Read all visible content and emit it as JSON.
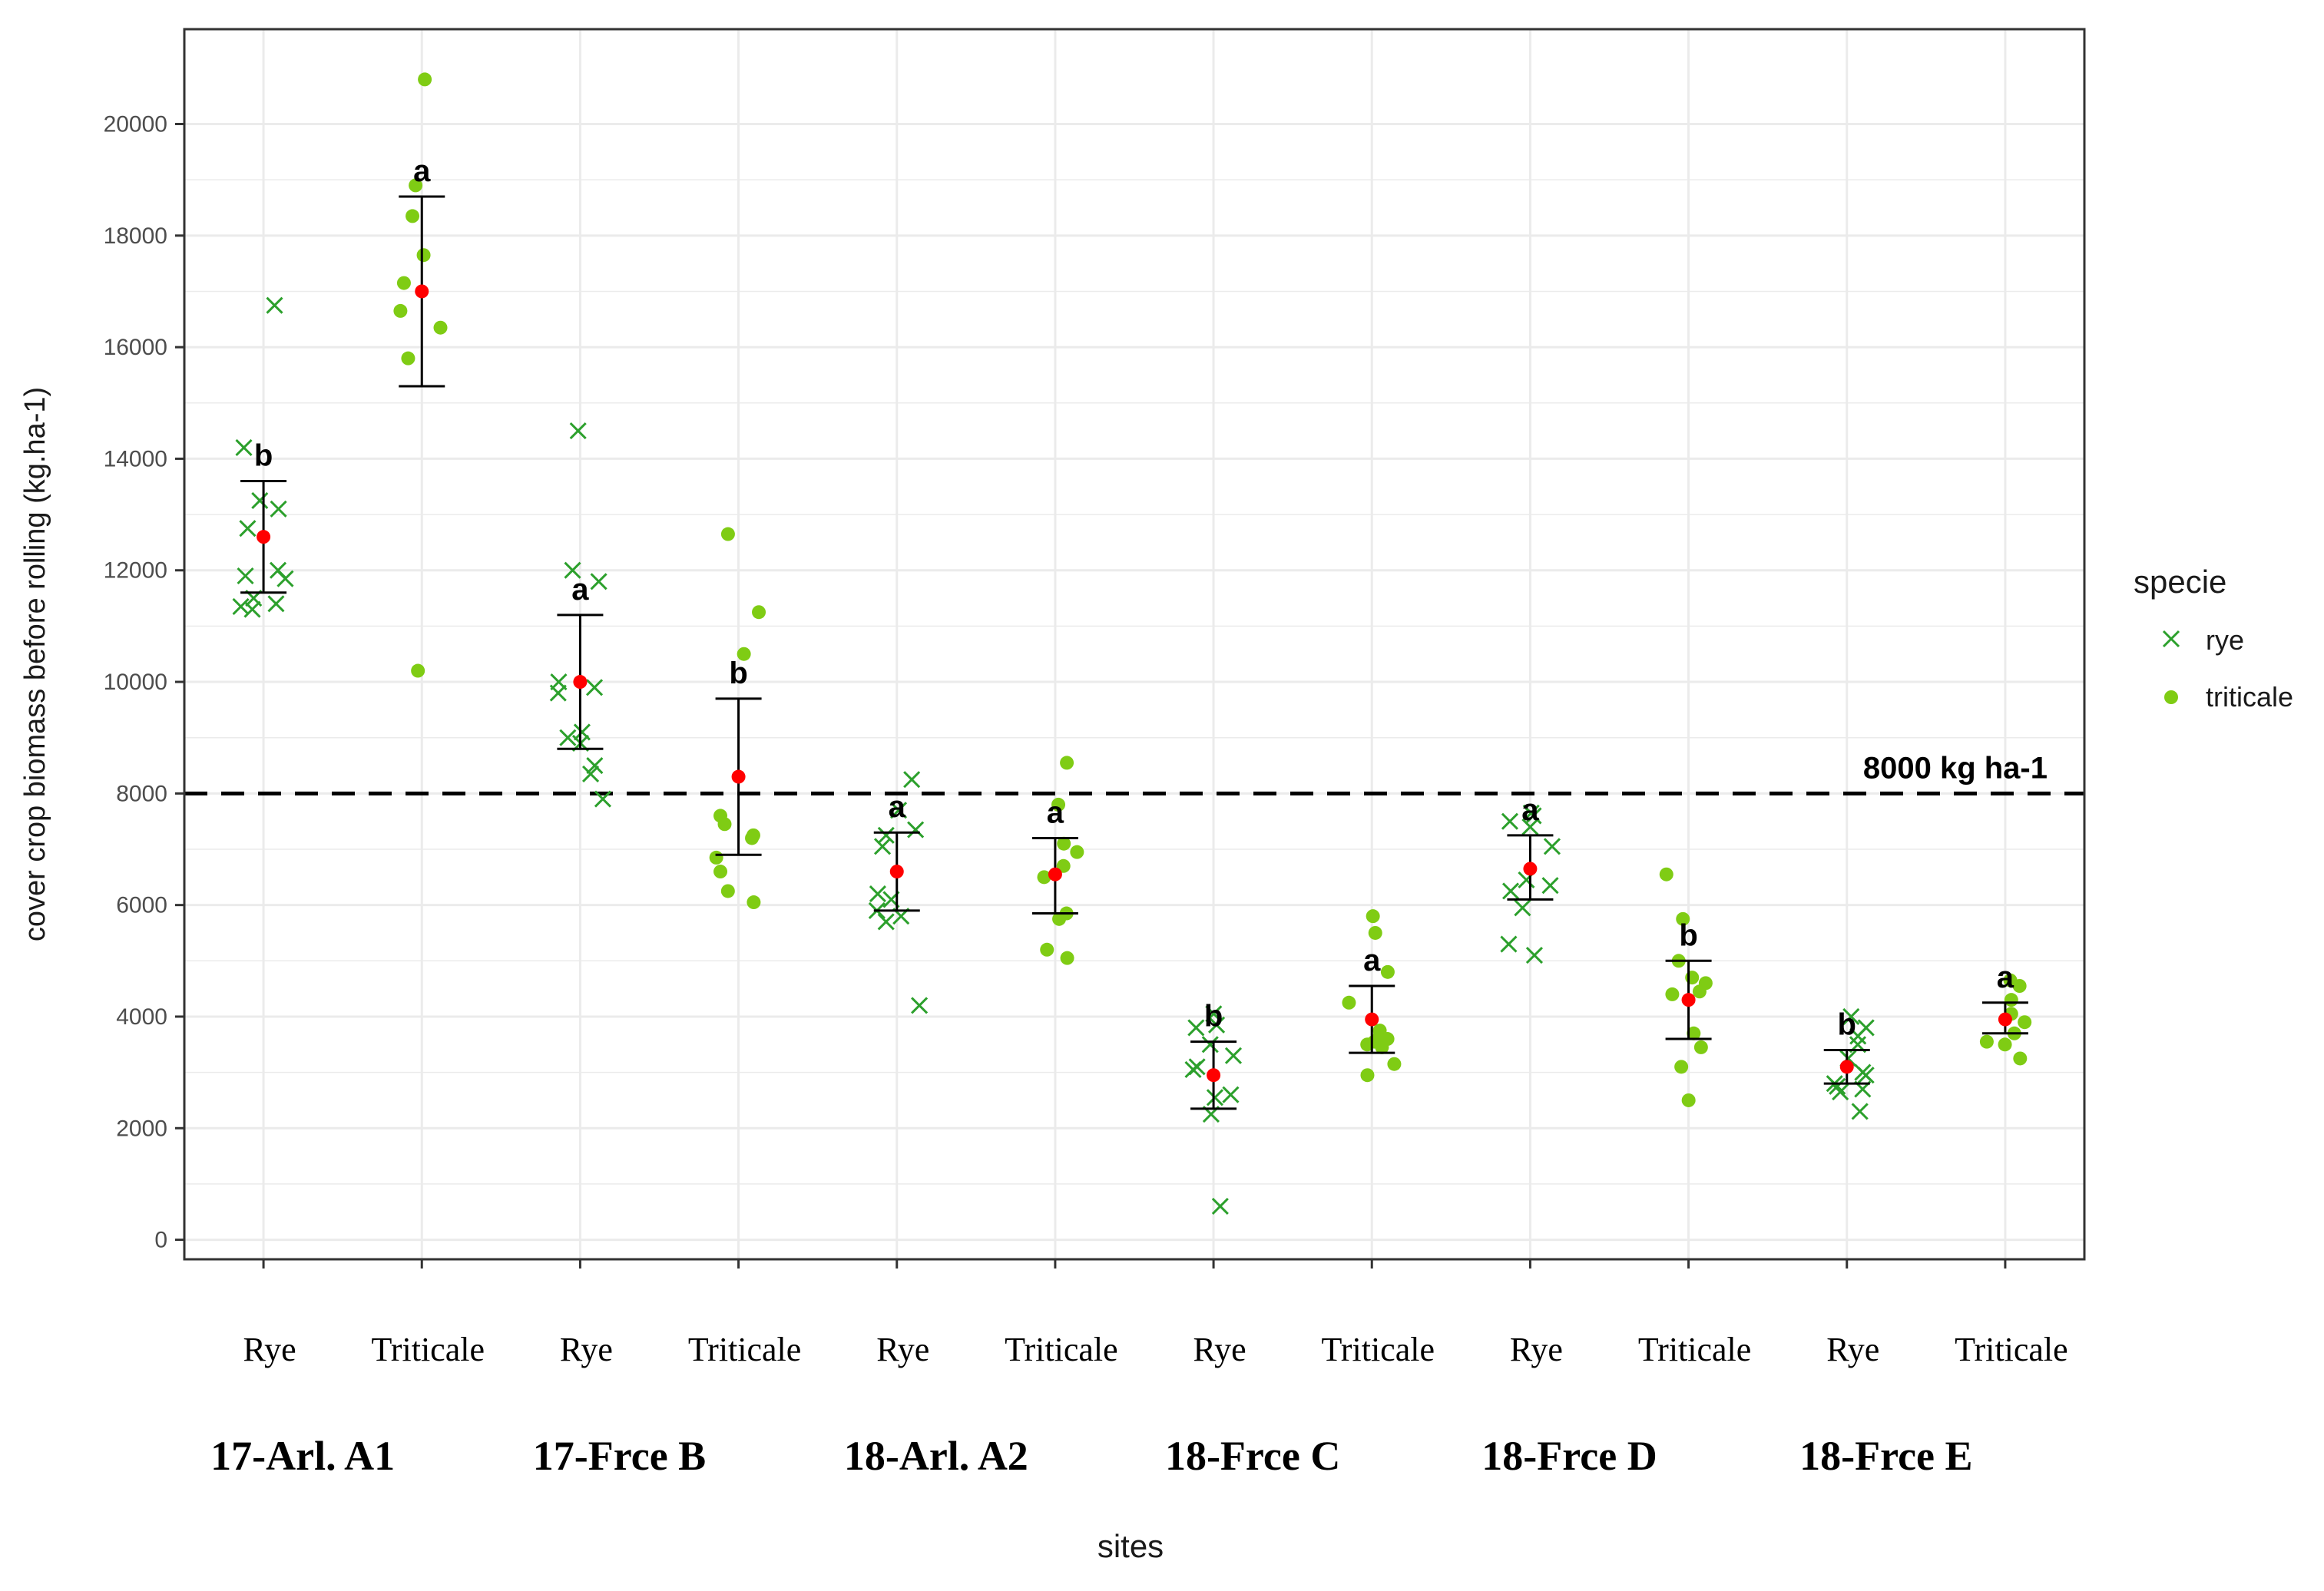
{
  "chart_data": {
    "type": "scatter",
    "title": "",
    "xlabel": "sites",
    "ylabel": "cover crop biomass before rolling (kg.ha-1)",
    "ylim": [
      -350,
      21700
    ],
    "y_ticks": [
      0,
      2000,
      4000,
      6000,
      8000,
      10000,
      12000,
      14000,
      16000,
      18000,
      20000
    ],
    "grid": true,
    "reference_line": {
      "value": 8000,
      "label": "8000 kg ha-1",
      "style": "dashed"
    },
    "legend": {
      "title": "specie",
      "placement": "right",
      "entries": [
        {
          "name": "rye",
          "marker": "x",
          "color": "#2ca02c"
        },
        {
          "name": "triticale",
          "marker": "circle",
          "color": "#7fcc14"
        }
      ]
    },
    "colors": {
      "rye": "#2ca02c",
      "triticale": "#7fcc14",
      "mean": "#ff0000",
      "errorbar": "#000000",
      "grid": "#ebebeb",
      "panel_border": "#333333"
    },
    "sites": [
      "17-Arl. A1",
      "17-Frce B",
      "18-Arl. A2",
      "18-Frce C",
      "18-Frce D",
      "18-Frce E"
    ],
    "groups": [
      {
        "site": "17-Arl. A1",
        "label": "Rye",
        "specie": "rye",
        "mean": 12600,
        "ci": [
          11600,
          13600
        ],
        "letter": "b",
        "points": [
          16750,
          14200,
          13250,
          13100,
          12750,
          12000,
          11900,
          11850,
          11500,
          11400,
          11350,
          11300
        ]
      },
      {
        "site": "17-Arl. A1",
        "label": "Triticale",
        "specie": "triticale",
        "mean": 17000,
        "ci": [
          15300,
          18700
        ],
        "letter": "a",
        "points": [
          20800,
          18900,
          18350,
          17650,
          17150,
          16650,
          16350,
          15800,
          10200
        ]
      },
      {
        "site": "17-Frce B",
        "label": "Rye",
        "specie": "rye",
        "mean": 10000,
        "ci": [
          8800,
          11200
        ],
        "letter": "a",
        "points": [
          14500,
          12000,
          11800,
          10000,
          9900,
          9800,
          9100,
          9000,
          8900,
          8500,
          8350,
          7900
        ]
      },
      {
        "site": "17-Frce B",
        "label": "Triticale",
        "specie": "triticale",
        "mean": 8300,
        "ci": [
          6900,
          9700
        ],
        "letter": "b",
        "points": [
          12650,
          11250,
          10500,
          7600,
          7450,
          7250,
          7200,
          6850,
          6600,
          6250,
          6050
        ]
      },
      {
        "site": "18-Arl. A2",
        "label": "Rye",
        "specie": "rye",
        "mean": 6600,
        "ci": [
          5900,
          7300
        ],
        "letter": "a",
        "points": [
          8250,
          7700,
          7350,
          7250,
          7050,
          6200,
          6100,
          5900,
          5800,
          5700,
          4200
        ]
      },
      {
        "site": "18-Arl. A2",
        "label": "Triticale",
        "specie": "triticale",
        "mean": 6550,
        "ci": [
          5850,
          7200
        ],
        "letter": "a",
        "points": [
          8550,
          7800,
          7100,
          6950,
          6700,
          6500,
          5850,
          5750,
          5200,
          5050
        ]
      },
      {
        "site": "18-Frce C",
        "label": "Rye",
        "specie": "rye",
        "mean": 2950,
        "ci": [
          2350,
          3550
        ],
        "letter": "b",
        "points": [
          4050,
          3850,
          3800,
          3500,
          3300,
          3100,
          3050,
          2600,
          2550,
          2250,
          600
        ]
      },
      {
        "site": "18-Frce C",
        "label": "Triticale",
        "specie": "triticale",
        "mean": 3950,
        "ci": [
          3350,
          4550
        ],
        "letter": "a",
        "points": [
          5800,
          5500,
          4800,
          4250,
          3750,
          3650,
          3600,
          3550,
          3500,
          3450,
          3150,
          2950
        ]
      },
      {
        "site": "18-Frce D",
        "label": "Rye",
        "specie": "rye",
        "mean": 6650,
        "ci": [
          6100,
          7250
        ],
        "letter": "a",
        "points": [
          7650,
          7600,
          7500,
          7400,
          7050,
          6450,
          6350,
          6250,
          5950,
          5300,
          5100
        ]
      },
      {
        "site": "18-Frce D",
        "label": "Triticale",
        "specie": "triticale",
        "mean": 4300,
        "ci": [
          3600,
          5000
        ],
        "letter": "b",
        "points": [
          6550,
          5750,
          5000,
          4700,
          4600,
          4450,
          4400,
          3700,
          3450,
          3100,
          2500
        ]
      },
      {
        "site": "18-Frce E",
        "label": "Rye",
        "specie": "rye",
        "mean": 3100,
        "ci": [
          2800,
          3400
        ],
        "letter": "b",
        "points": [
          4000,
          3800,
          3650,
          3500,
          3250,
          3000,
          2950,
          2800,
          2750,
          2700,
          2650,
          2300
        ]
      },
      {
        "site": "18-Frce E",
        "label": "Triticale",
        "specie": "triticale",
        "mean": 3950,
        "ci": [
          3700,
          4250
        ],
        "letter": "a",
        "points": [
          4650,
          4550,
          4300,
          4050,
          3900,
          3700,
          3550,
          3500,
          3250
        ]
      }
    ]
  }
}
